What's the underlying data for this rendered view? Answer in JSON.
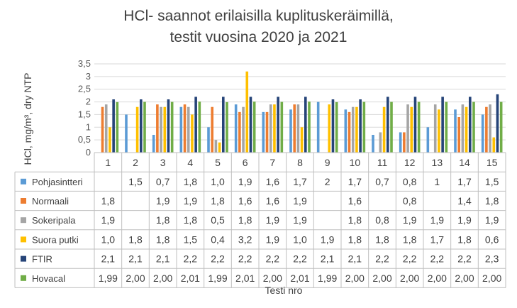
{
  "chart_data": {
    "type": "bar",
    "title": [
      "HCl- saannot erilaisilla kuplituskeräimillä,",
      "testit vuosina 2020 ja 2021"
    ],
    "xlabel": "Testi nro",
    "ylabel": "HCl, mg/m³, dry NTP",
    "ylim": [
      0,
      3.5
    ],
    "ytick_labels": [
      "0",
      "0,5",
      "1",
      "1,5",
      "2",
      "2,5",
      "3",
      "3,5"
    ],
    "grid": true,
    "legend_placement": "data-table",
    "categories": [
      "1",
      "2",
      "3",
      "4",
      "5",
      "6",
      "7",
      "8",
      "9",
      "10",
      "11",
      "12",
      "13",
      "14",
      "15"
    ],
    "series": [
      {
        "name": "Pohjasintteri",
        "color": "#5B9BD5",
        "values": [
          null,
          1.5,
          0.7,
          1.8,
          1.0,
          1.9,
          1.6,
          1.7,
          2,
          1.7,
          0.7,
          0.8,
          1,
          1.7,
          1.5
        ],
        "labels": [
          "",
          "1,5",
          "0,7",
          "1,8",
          "1,0",
          "1,9",
          "1,6",
          "1,7",
          "2",
          "1,7",
          "0,7",
          "0,8",
          "1",
          "1,7",
          "1,5"
        ]
      },
      {
        "name": "Normaali",
        "color": "#ED7D31",
        "values": [
          1.8,
          null,
          1.9,
          1.9,
          1.8,
          1.6,
          1.6,
          1.9,
          null,
          1.6,
          null,
          0.8,
          null,
          1.4,
          1.8
        ],
        "labels": [
          "1,8",
          "",
          "1,9",
          "1,9",
          "1,8",
          "1,6",
          "1,6",
          "1,9",
          "",
          "1,6",
          "",
          "0,8",
          "",
          "1,4",
          "1,8"
        ]
      },
      {
        "name": "Sokeripala",
        "color": "#A5A5A5",
        "values": [
          1.9,
          null,
          1.8,
          1.8,
          0.5,
          1.8,
          1.9,
          1.9,
          null,
          1.8,
          0.8,
          1.9,
          1.9,
          1.9,
          1.9
        ],
        "labels": [
          "1,9",
          "",
          "1,8",
          "1,8",
          "0,5",
          "1,8",
          "1,9",
          "1,9",
          "",
          "1,8",
          "0,8",
          "1,9",
          "1,9",
          "1,9",
          "1,9"
        ]
      },
      {
        "name": "Suora putki",
        "color": "#FFC000",
        "values": [
          1.0,
          1.8,
          1.8,
          1.5,
          0.4,
          3.2,
          1.9,
          1.0,
          1.9,
          1.8,
          1.8,
          1.8,
          1.7,
          1.8,
          0.6
        ],
        "labels": [
          "1,0",
          "1,8",
          "1,8",
          "1,5",
          "0,4",
          "3,2",
          "1,9",
          "1,0",
          "1,9",
          "1,8",
          "1,8",
          "1,8",
          "1,7",
          "1,8",
          "0,6"
        ]
      },
      {
        "name": "FTIR",
        "color": "#264478",
        "values": [
          2.1,
          2.1,
          2.1,
          2.2,
          2.2,
          2.2,
          2.2,
          2.2,
          2.1,
          2.1,
          2.2,
          2.2,
          2.2,
          2.2,
          2.3
        ],
        "labels": [
          "2,1",
          "2,1",
          "2,1",
          "2,2",
          "2,2",
          "2,2",
          "2,2",
          "2,2",
          "2,1",
          "2,1",
          "2,2",
          "2,2",
          "2,2",
          "2,2",
          "2,3"
        ]
      },
      {
        "name": "Hovacal",
        "color": "#70AD47",
        "values": [
          1.99,
          2.0,
          2.0,
          2.01,
          1.99,
          2.01,
          2.0,
          2.01,
          1.99,
          2.0,
          2.0,
          2.0,
          2.0,
          2.0,
          2.0
        ],
        "labels": [
          "1,99",
          "2,00",
          "2,00",
          "2,01",
          "1,99",
          "2,01",
          "2,00",
          "2,01",
          "1,99",
          "2,00",
          "2,00",
          "2,00",
          "2,00",
          "2,00",
          "2,00"
        ]
      }
    ]
  }
}
